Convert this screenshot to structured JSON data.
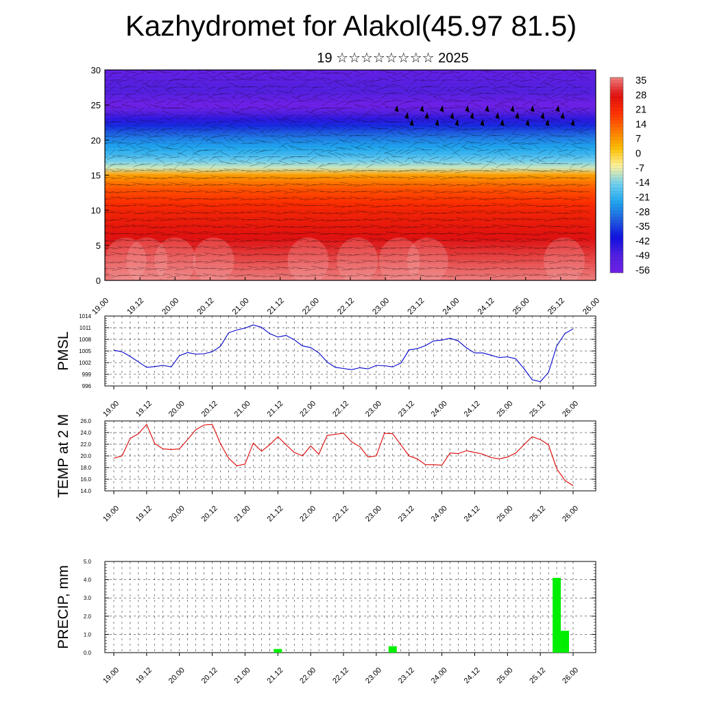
{
  "title": "Kazhydromet for Alakol(45.97 81.5)",
  "subtitle": "19 ☆☆☆☆☆☆☆☆ 2025",
  "chart_data": [
    {
      "type": "heatmap",
      "name": "upper-air-section",
      "y_ticks": [
        "0",
        "5",
        "10",
        "15",
        "20",
        "25",
        "30"
      ],
      "ylim": [
        0,
        30
      ],
      "x_ticks": [
        "19.00",
        "19.12",
        "20.00",
        "20.12",
        "21.00",
        "21.12",
        "22.00",
        "22.12",
        "23.00",
        "23.12",
        "24.00",
        "24.12",
        "25.00",
        "25.12",
        "26.00"
      ],
      "colorbar_labels": [
        "35",
        "28",
        "21",
        "14",
        "7",
        "0",
        "-7",
        "-14",
        "-21",
        "-28",
        "-35",
        "-42",
        "-49",
        "-56"
      ],
      "profile": {
        "level": [
          0,
          5,
          10,
          13,
          15,
          16,
          18,
          20,
          22,
          24,
          25,
          27,
          30
        ],
        "value": [
          35,
          28,
          21,
          14,
          5,
          -10,
          -21,
          -28,
          -38,
          -52,
          -58,
          -50,
          -55
        ]
      },
      "colors": [
        "#f08080",
        "#e01010",
        "#ff3000",
        "#ff7800",
        "#ffc000",
        "#fff4a0",
        "#70d0f0",
        "#20a8f0",
        "#2060e0",
        "#1010e0",
        "#5020e0",
        "#7020e8"
      ]
    },
    {
      "type": "line",
      "ylabel": "PMSL",
      "y_ticks": [
        "996",
        "999",
        "1002",
        "1005",
        "1008",
        "1011",
        "1014"
      ],
      "ylim": [
        996,
        1014
      ],
      "x_ticks": [
        "19.00",
        "19.12",
        "20.00",
        "20.12",
        "21.00",
        "21.12",
        "22.00",
        "22.12",
        "23.00",
        "23.12",
        "24.00",
        "24.12",
        "25.00",
        "25.12",
        "26.00"
      ],
      "series": [
        {
          "color": "#0000cc",
          "values": [
            1005.2,
            1004.8,
            1003.6,
            1002.2,
            1000.8,
            1001.0,
            1001.3,
            1000.9,
            1003.8,
            1004.6,
            1004.2,
            1004.3,
            1004.8,
            1006.2,
            1009.7,
            1010.4,
            1010.9,
            1011.7,
            1011.1,
            1009.5,
            1008.6,
            1009.0,
            1007.9,
            1006.3,
            1005.9,
            1004.5,
            1002.2,
            1000.8,
            1000.5,
            1000.2,
            1000.7,
            1000.4,
            1001.3,
            1001.2,
            1000.9,
            1001.9,
            1005.3,
            1005.6,
            1006.4,
            1007.6,
            1007.8,
            1008.3,
            1007.6,
            1005.8,
            1004.5,
            1004.5,
            1003.9,
            1003.3,
            1003.5,
            1003.0,
            1000.5,
            997.6,
            997.1,
            999.5,
            1006.3,
            1009.5,
            1010.7
          ]
        }
      ]
    },
    {
      "type": "line",
      "ylabel": "TEMP at 2 M",
      "y_ticks": [
        "14.0",
        "16.0",
        "18.0",
        "20.0",
        "22.0",
        "24.0",
        "26.0"
      ],
      "ylim": [
        14,
        26
      ],
      "x_ticks": [
        "19.00",
        "19.12",
        "20.00",
        "20.12",
        "21.00",
        "21.12",
        "22.00",
        "22.12",
        "23.00",
        "23.12",
        "24.00",
        "24.12",
        "25.00",
        "25.12",
        "26.00"
      ],
      "series": [
        {
          "color": "#dd0000",
          "values": [
            19.6,
            20.0,
            23.0,
            23.8,
            25.4,
            22.1,
            21.2,
            21.1,
            21.2,
            22.8,
            24.5,
            25.3,
            25.4,
            22.1,
            19.6,
            18.3,
            18.6,
            22.2,
            20.8,
            21.9,
            23.3,
            21.9,
            20.6,
            20.0,
            21.7,
            20.3,
            23.5,
            23.7,
            23.9,
            22.4,
            21.6,
            19.8,
            20.0,
            23.9,
            23.8,
            21.9,
            20.0,
            19.5,
            18.5,
            18.5,
            18.4,
            20.5,
            20.4,
            20.9,
            20.6,
            20.3,
            19.7,
            19.5,
            19.8,
            20.5,
            21.9,
            23.3,
            22.8,
            21.9,
            17.8,
            15.8,
            14.9
          ]
        }
      ]
    },
    {
      "type": "bar",
      "ylabel": "PRECIP, mm",
      "y_ticks": [
        "0.0",
        "1.0",
        "2.0",
        "3.0",
        "4.0",
        "5.0"
      ],
      "ylim": [
        0,
        5
      ],
      "x_ticks": [
        "19.00",
        "19.12",
        "20.00",
        "20.12",
        "21.00",
        "21.12",
        "22.00",
        "22.12",
        "23.00",
        "23.12",
        "24.00",
        "24.12",
        "25.00",
        "25.12",
        "26.00"
      ],
      "bar_color": "#00ee00",
      "bars": [
        {
          "t": 21.5,
          "value": 0.2
        },
        {
          "t": 23.25,
          "value": 0.35
        },
        {
          "t": 25.75,
          "value": 4.1
        },
        {
          "t": 25.875,
          "value": 1.2
        }
      ]
    }
  ]
}
